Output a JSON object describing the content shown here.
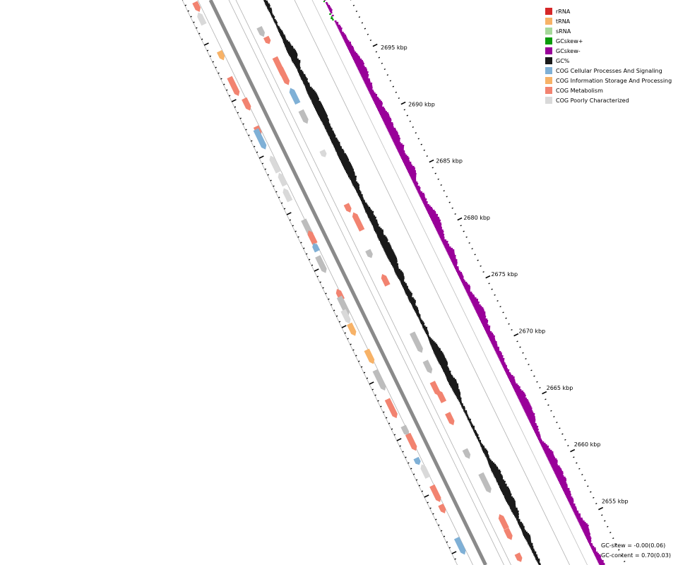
{
  "legend": [
    {
      "label": "rRNA",
      "color": "#d62728"
    },
    {
      "label": "tRNA",
      "color": "#f7b267"
    },
    {
      "label": "sRNA",
      "color": "#a6d89a"
    },
    {
      "label": "GCskew+",
      "color": "#0b9b0b"
    },
    {
      "label": "GCskew-",
      "color": "#990099"
    },
    {
      "label": "GC%",
      "color": "#1a1a1a"
    },
    {
      "label": "COG Cellular Processes And Signaling",
      "color": "#7fb0d6"
    },
    {
      "label": "COG Information Storage And Processing",
      "color": "#f7b267"
    },
    {
      "label": "COG Metabolism",
      "color": "#f28370"
    },
    {
      "label": "COG Poorly Characterized",
      "color": "#d9d9d9"
    }
  ],
  "ticks": [
    {
      "label": "2695 kbp"
    },
    {
      "label": "2690 kbp"
    },
    {
      "label": "2685 kbp"
    },
    {
      "label": "2680 kbp"
    },
    {
      "label": "2675 kbp"
    },
    {
      "label": "2670 kbp"
    },
    {
      "label": "2665 kbp"
    },
    {
      "label": "2660 kbp"
    },
    {
      "label": "2655 kbp"
    }
  ],
  "stats": {
    "gc_skew": "GC-skew = -0.00(0.06)",
    "gc_content": "GC-content = 0.70(0.03)"
  }
}
